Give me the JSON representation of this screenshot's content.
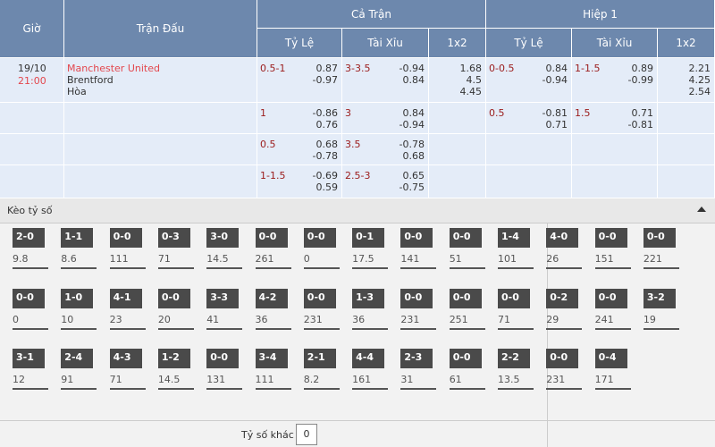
{
  "header": {
    "time": "Giờ",
    "match": "Trận Đấu",
    "full": "Cả Trận",
    "half": "Hiệp 1",
    "cols": [
      "Tỷ Lệ",
      "Tài Xỉu",
      "1x2"
    ]
  },
  "rows": [
    {
      "date": "19/10",
      "clock": "21:00",
      "teams": [
        "Manchester United",
        "Brentford",
        "Hòa"
      ],
      "full_hdp": [
        "0.5-1",
        "0.87",
        "-0.97"
      ],
      "full_ou": [
        "3-3.5",
        "-0.94",
        "0.84"
      ],
      "full_1x2": [
        "1.68",
        "4.5",
        "4.45"
      ],
      "half_hdp": [
        "0-0.5",
        "0.84",
        "-0.94"
      ],
      "half_ou": [
        "1-1.5",
        "0.89",
        "-0.99"
      ],
      "half_1x2": [
        "2.21",
        "4.25",
        "2.54"
      ]
    },
    {
      "full_hdp": [
        "1",
        "-0.86",
        "0.76"
      ],
      "full_ou": [
        "3",
        "0.84",
        "-0.94"
      ],
      "half_hdp": [
        "0.5",
        "-0.81",
        "0.71"
      ],
      "half_ou": [
        "1.5",
        "0.71",
        "-0.81"
      ]
    },
    {
      "full_hdp": [
        "0.5",
        "0.68",
        "-0.78"
      ],
      "full_ou": [
        "3.5",
        "-0.78",
        "0.68"
      ]
    },
    {
      "full_hdp": [
        "1-1.5",
        "-0.69",
        "0.59"
      ],
      "full_ou": [
        "2.5-3",
        "0.65",
        "-0.75"
      ]
    }
  ],
  "scores": {
    "title": "Kèo tỷ số",
    "items": [
      [
        "2-0",
        "9.8"
      ],
      [
        "1-1",
        "8.6"
      ],
      [
        "0-0",
        "111"
      ],
      [
        "0-3",
        "71"
      ],
      [
        "3-0",
        "14.5"
      ],
      [
        "0-0",
        "261"
      ],
      [
        "0-0",
        "0"
      ],
      [
        "0-1",
        "17.5"
      ],
      [
        "0-0",
        "141"
      ],
      [
        "0-0",
        "51"
      ],
      [
        "1-4",
        "101"
      ],
      [
        "4-0",
        "26"
      ],
      [
        "0-0",
        "151"
      ],
      [
        "0-0",
        "221"
      ],
      [
        "0-0",
        "0"
      ],
      [
        "1-0",
        "10"
      ],
      [
        "4-1",
        "23"
      ],
      [
        "0-0",
        "20"
      ],
      [
        "3-3",
        "41"
      ],
      [
        "4-2",
        "36"
      ],
      [
        "0-0",
        "231"
      ],
      [
        "1-3",
        "36"
      ],
      [
        "0-0",
        "231"
      ],
      [
        "0-0",
        "251"
      ],
      [
        "0-0",
        "71"
      ],
      [
        "0-2",
        "29"
      ],
      [
        "0-0",
        "241"
      ],
      [
        "3-2",
        "19"
      ],
      [
        "3-1",
        "12"
      ],
      [
        "2-4",
        "91"
      ],
      [
        "4-3",
        "71"
      ],
      [
        "1-2",
        "14.5"
      ],
      [
        "0-0",
        "131"
      ],
      [
        "3-4",
        "111"
      ],
      [
        "2-1",
        "8.2"
      ],
      [
        "4-4",
        "161"
      ],
      [
        "2-3",
        "31"
      ],
      [
        "0-0",
        "61"
      ],
      [
        "2-2",
        "13.5"
      ],
      [
        "0-0",
        "231"
      ],
      [
        "0-4",
        "171"
      ]
    ],
    "other_label": "Tỷ số khác",
    "other_value": "0"
  }
}
